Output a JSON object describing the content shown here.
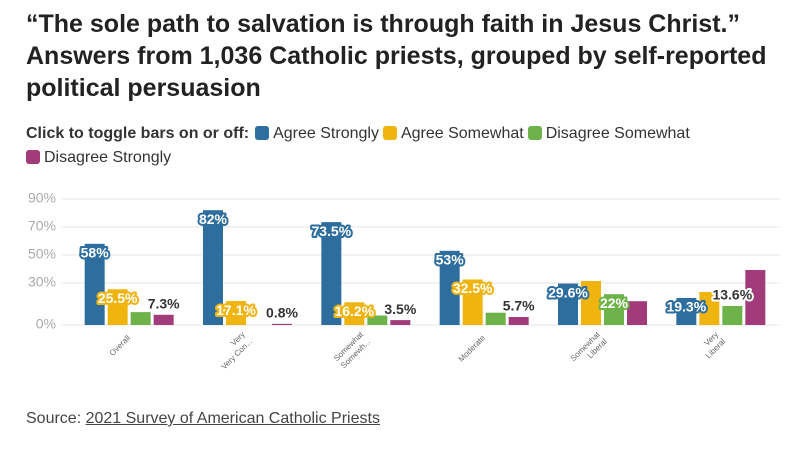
{
  "chart_data": {
    "type": "bar",
    "title": "“The sole path to salvation is through faith in Jesus Christ.” Answers from 1,036 Catholic priests, grouped by self-reported political persuasion",
    "legend_prompt": "Click to toggle bars on or off:",
    "categories": [
      [
        "Overall"
      ],
      [
        "Very",
        "Very Con..."
      ],
      [
        "Somewhat",
        "Somewh..."
      ],
      [
        "Moderate"
      ],
      [
        "Somewhat",
        "Liberal"
      ],
      [
        "Very",
        "Liberal"
      ]
    ],
    "series": [
      {
        "name": "Agree Strongly",
        "color": "#2e6e9e",
        "values": [
          58,
          82,
          73.5,
          53,
          29.6,
          19.3
        ],
        "value_labels": [
          "58%",
          "82%",
          "73.5%",
          "53%",
          "29.6%",
          "19.3%"
        ]
      },
      {
        "name": "Agree Somewhat",
        "color": "#f0b40f",
        "values": [
          25.5,
          17.1,
          16.2,
          32.5,
          31.4,
          23.6
        ],
        "value_labels": [
          "25.5%",
          "17.1%",
          "16.2%",
          "32.5%",
          null,
          null
        ]
      },
      {
        "name": "Disagree Somewhat",
        "color": "#6db34a",
        "values": [
          9.2,
          0,
          6.8,
          8.8,
          22,
          13.6
        ],
        "value_labels": [
          null,
          null,
          null,
          null,
          "22%",
          "13.6%"
        ]
      },
      {
        "name": "Disagree Strongly",
        "color": "#a13b79",
        "values": [
          7.3,
          0.8,
          3.5,
          5.7,
          17,
          39.3
        ],
        "value_labels": [
          "7.3%",
          "0.8%",
          "3.5%",
          "5.7%",
          null,
          null
        ]
      }
    ],
    "ylim": [
      0,
      100
    ],
    "yticks": [
      {
        "value": 0,
        "label": "0%"
      },
      {
        "value": 30,
        "label": "30%"
      },
      {
        "value": 50,
        "label": "50%"
      },
      {
        "value": 70,
        "label": "70%"
      },
      {
        "value": 90,
        "label": "90%"
      }
    ],
    "grid": true,
    "source_prefix": "Source:",
    "source_link": "2021 Survey of American Catholic Priests"
  }
}
